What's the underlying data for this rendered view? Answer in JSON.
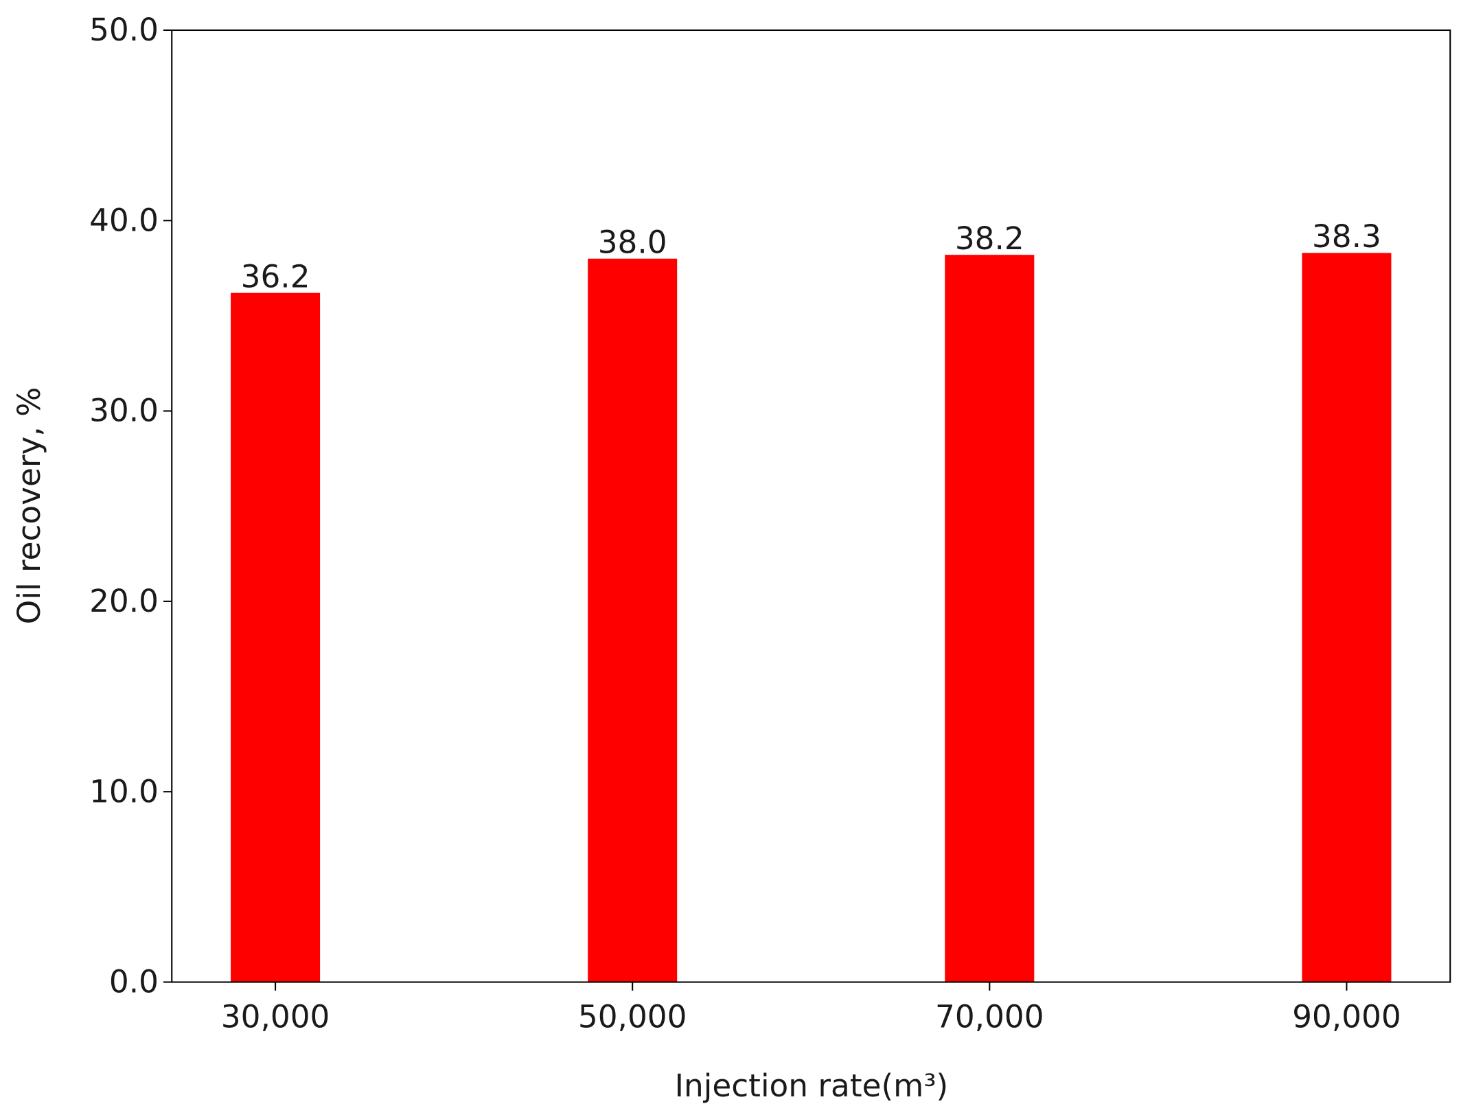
{
  "chart_data": {
    "type": "bar",
    "categories": [
      "30,000",
      "50,000",
      "70,000",
      "90,000"
    ],
    "values": [
      36.2,
      38.0,
      38.2,
      38.3
    ],
    "value_labels": [
      "36.2",
      "38.0",
      "38.2",
      "38.3"
    ],
    "color": "#ff0000",
    "x_label": "Injection rate(m³)",
    "y_label": "Oil recovery, %",
    "ylim": [
      0,
      50
    ],
    "yticks": [
      {
        "value": 0,
        "label": "0.0"
      },
      {
        "value": 10,
        "label": "10.0"
      },
      {
        "value": 20,
        "label": "20.0"
      },
      {
        "value": 30,
        "label": "30.0"
      },
      {
        "value": 40,
        "label": "40.0"
      },
      {
        "value": 50,
        "label": "50.0"
      }
    ],
    "grid": false
  }
}
